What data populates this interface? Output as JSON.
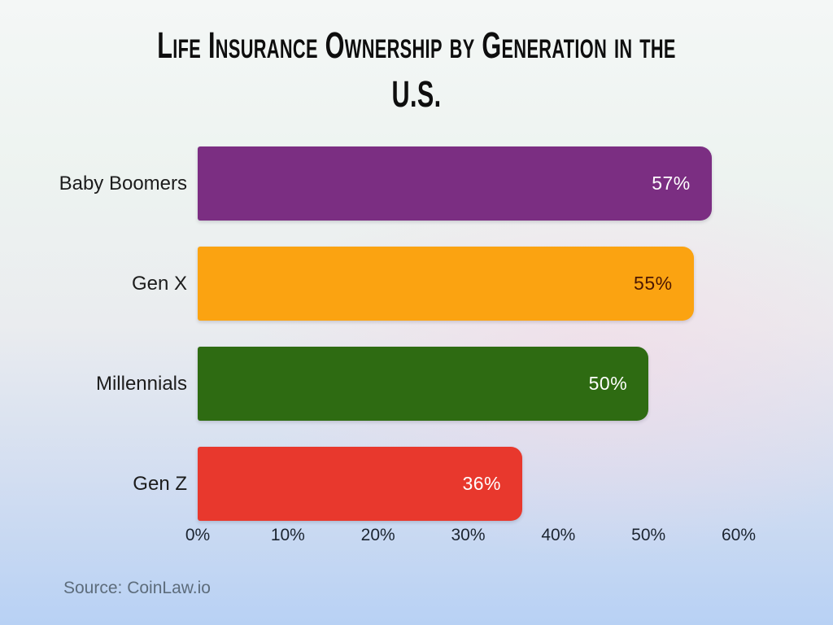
{
  "title": {
    "line1": "Life Insurance Ownership by Generation in the",
    "line2": "U.S."
  },
  "source": {
    "label": "Source: CoinLaw.io"
  },
  "chart_data": {
    "type": "bar",
    "orientation": "horizontal",
    "title": "Life Insurance Ownership by Generation in the U.S.",
    "categories": [
      "Baby Boomers",
      "Gen X",
      "Millennials",
      "Gen Z"
    ],
    "values": [
      57,
      55,
      50,
      36
    ],
    "value_labels": [
      "57%",
      "55%",
      "50%",
      "36%"
    ],
    "bar_colors": [
      "#7b2e82",
      "#fba311",
      "#2e6b12",
      "#e8382d"
    ],
    "value_label_colors": [
      "#ffffff",
      "#4b1702",
      "#ffffff",
      "#ffffff"
    ],
    "xlabel": "",
    "ylabel": "",
    "xlim": [
      0,
      60
    ],
    "x_ticks": [
      "0%",
      "10%",
      "20%",
      "30%",
      "40%",
      "50%",
      "60%"
    ],
    "grid": false,
    "legend": false,
    "source": "Source: CoinLaw.io",
    "title_color": "#0e0e0e",
    "axis_label_color": "#1b2430",
    "category_label_color": "#1c1c1c"
  }
}
